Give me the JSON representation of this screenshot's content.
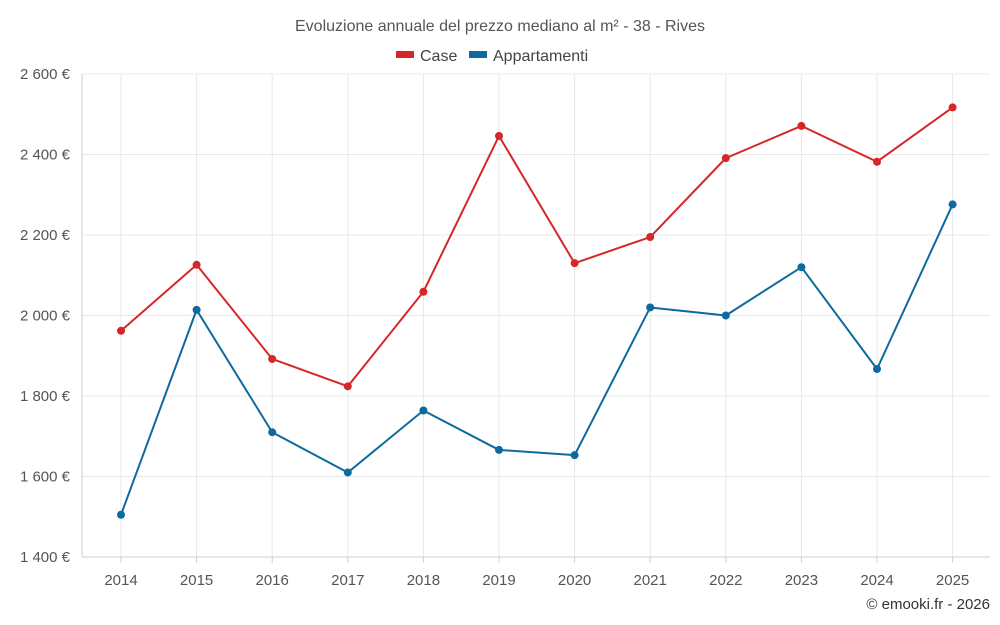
{
  "chart_data": {
    "type": "line",
    "title": "Evoluzione annuale del prezzo mediano al m² - 38 - Rives",
    "categories": [
      "2014",
      "2015",
      "2016",
      "2017",
      "2018",
      "2019",
      "2020",
      "2021",
      "2022",
      "2023",
      "2024",
      "2025"
    ],
    "series": [
      {
        "name": "Case",
        "color": "#d62728",
        "values": [
          1962,
          2126,
          1892,
          1824,
          2059,
          2446,
          2130,
          2195,
          2391,
          2471,
          2382,
          2517
        ]
      },
      {
        "name": "Appartamenti",
        "color": "#0e6a9e",
        "values": [
          1505,
          2014,
          1710,
          1610,
          1764,
          1666,
          1653,
          2020,
          2000,
          2120,
          1867,
          2276
        ]
      }
    ],
    "ylim": [
      1400,
      2600
    ],
    "yticks": [
      1400,
      1600,
      1800,
      2000,
      2200,
      2400,
      2600
    ],
    "ytick_labels": [
      "1 400 €",
      "1 600 €",
      "1 800 €",
      "2 000 €",
      "2 200 €",
      "2 400 €",
      "2 600 €"
    ],
    "xlabel": "",
    "ylabel": "",
    "grid": true,
    "legend_position": "top-center"
  },
  "credit": "© emooki.fr - 2026"
}
